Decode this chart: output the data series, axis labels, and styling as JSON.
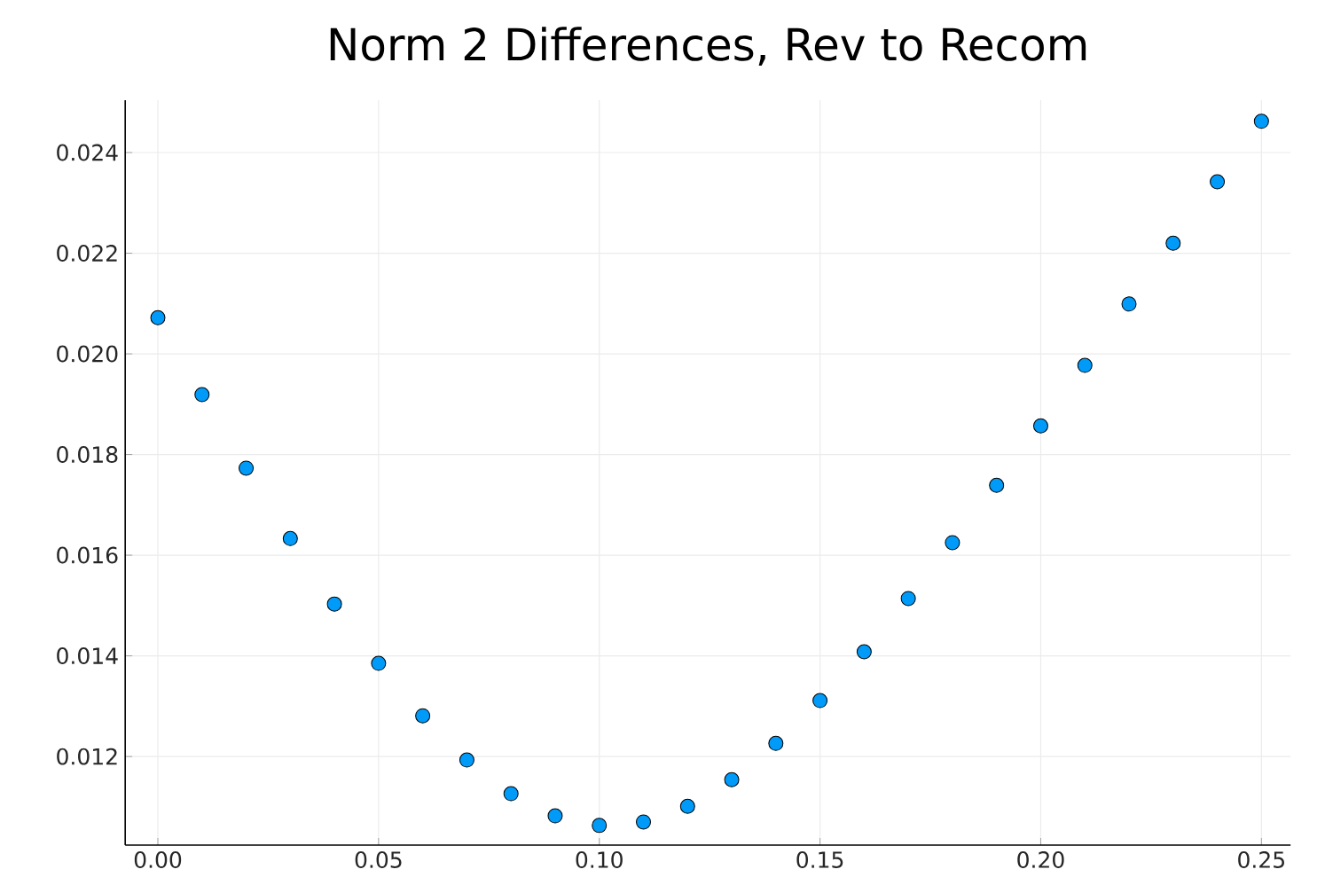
{
  "chart_data": {
    "type": "scatter",
    "title": "Norm 2 Differences, Rev to Recom",
    "x": [
      0.0,
      0.01,
      0.02,
      0.03,
      0.04,
      0.05,
      0.06,
      0.07,
      0.08,
      0.09,
      0.1,
      0.11,
      0.12,
      0.13,
      0.14,
      0.15,
      0.16,
      0.17,
      0.18,
      0.19,
      0.2,
      0.21,
      0.22,
      0.23,
      0.24,
      0.25
    ],
    "series": [
      {
        "color": "#009af9",
        "values": [
          0.02072,
          0.01919,
          0.01773,
          0.01633,
          0.01503,
          0.01385,
          0.01281,
          0.01193,
          0.01126,
          0.01082,
          0.01063,
          0.0107,
          0.01101,
          0.01154,
          0.01226,
          0.01311,
          0.01408,
          0.01514,
          0.01625,
          0.01739,
          0.01857,
          0.01977,
          0.02099,
          0.0222,
          0.02342,
          0.02462
        ]
      }
    ],
    "xlim": [
      -0.0074,
      0.2566
    ],
    "ylim": [
      0.01024,
      0.02504
    ],
    "xticks": [
      {
        "value": 0,
        "label": "0.00"
      },
      {
        "value": 0.05,
        "label": "0.05"
      },
      {
        "value": 0.1,
        "label": "0.10"
      },
      {
        "value": 0.15,
        "label": "0.15"
      },
      {
        "value": 0.2,
        "label": "0.20"
      },
      {
        "value": 0.25,
        "label": "0.25"
      }
    ],
    "yticks": [
      0.012,
      0.014,
      0.016,
      0.018,
      {
        "value": 0.02,
        "label": "0.020"
      },
      0.022,
      0.024
    ],
    "grid": true,
    "marker": "circle"
  }
}
